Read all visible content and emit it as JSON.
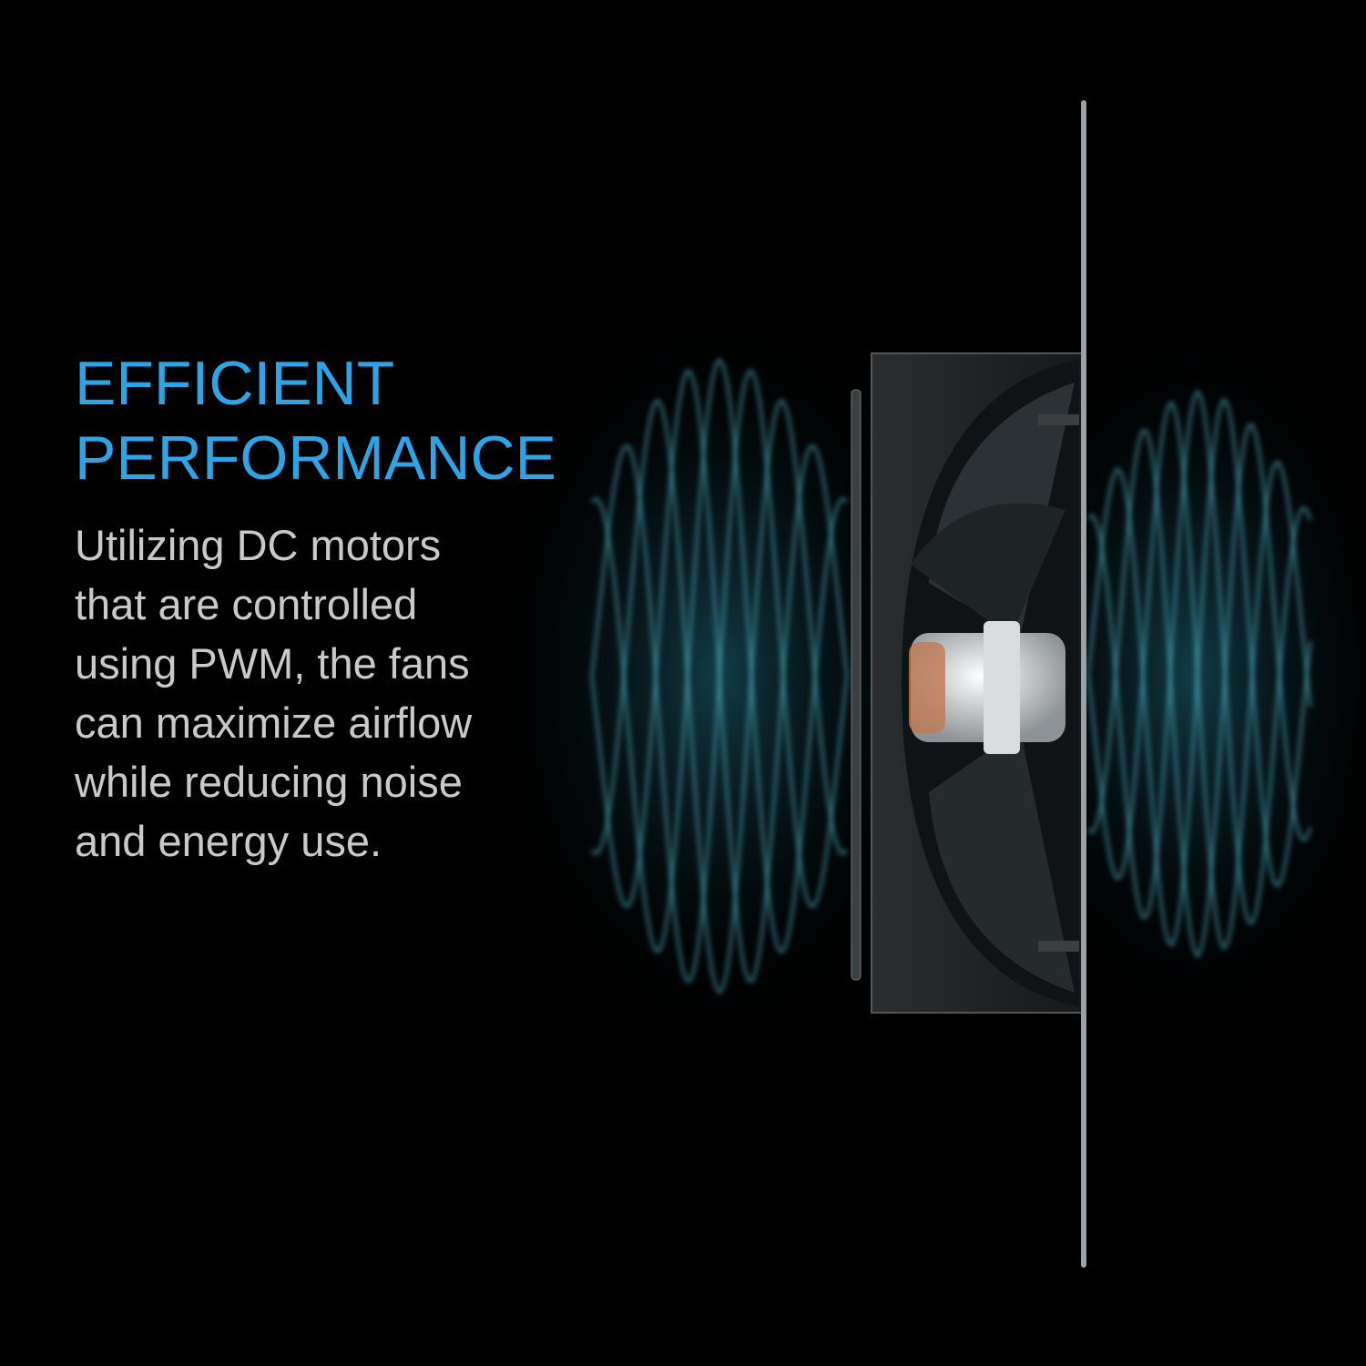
{
  "headline": {
    "line1": "EFFICIENT",
    "line2": "PERFORMANCE"
  },
  "body": {
    "lines": [
      "Utilizing DC motors",
      "that are controlled",
      "using PWM, the fans",
      "can maximize airflow",
      "while reducing noise",
      "and energy use."
    ]
  },
  "colors": {
    "background": "#000000",
    "headline": "#2ea3e6",
    "body": "#c9c9c9",
    "airflow_glow": "#5fd0e6"
  },
  "image": {
    "subject": "fan-with-dc-motor-and-airflow-waves"
  }
}
